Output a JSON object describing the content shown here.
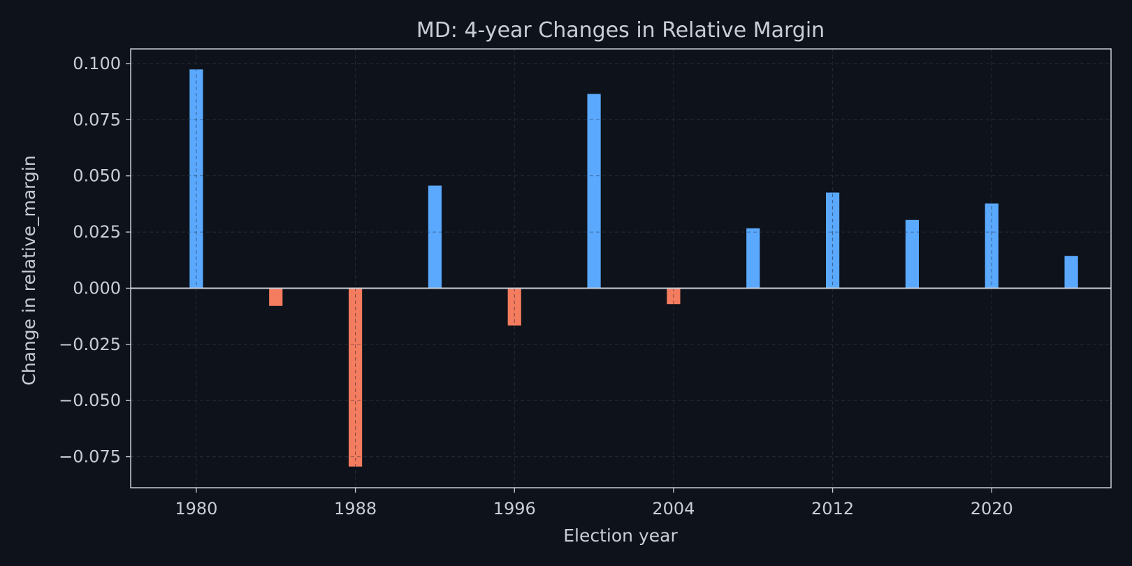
{
  "chart_data": {
    "type": "bar",
    "title": "MD: 4-year Changes in Relative Margin",
    "xlabel": "Election year",
    "ylabel": "Change in relative_margin",
    "x": [
      1980,
      1984,
      1988,
      1992,
      1996,
      2000,
      2004,
      2008,
      2012,
      2016,
      2020,
      2024
    ],
    "values": [
      0.0975,
      -0.008,
      -0.0795,
      0.0458,
      -0.0167,
      0.0866,
      -0.0072,
      0.0268,
      0.0427,
      0.0305,
      0.0378,
      0.0145
    ],
    "xlim": [
      1976.7,
      2026.0
    ],
    "ylim": [
      -0.0888,
      0.1065
    ],
    "xticks": [
      1980,
      1988,
      1996,
      2004,
      2012,
      2020
    ],
    "xtick_labels": [
      "1980",
      "1988",
      "1996",
      "2004",
      "2012",
      "2020"
    ],
    "yticks": [
      0.1,
      0.075,
      0.05,
      0.025,
      0,
      -0.025,
      -0.05,
      -0.075
    ],
    "ytick_labels": [
      "0.100",
      "0.075",
      "0.050",
      "0.025",
      "0.000",
      "−0.025",
      "−0.050",
      "−0.075"
    ],
    "grid": true,
    "colors": {
      "positive": "#5aa9ff",
      "negative": "#f47c5f",
      "background": "#0e121a",
      "axes": "#c9cdd6"
    }
  }
}
